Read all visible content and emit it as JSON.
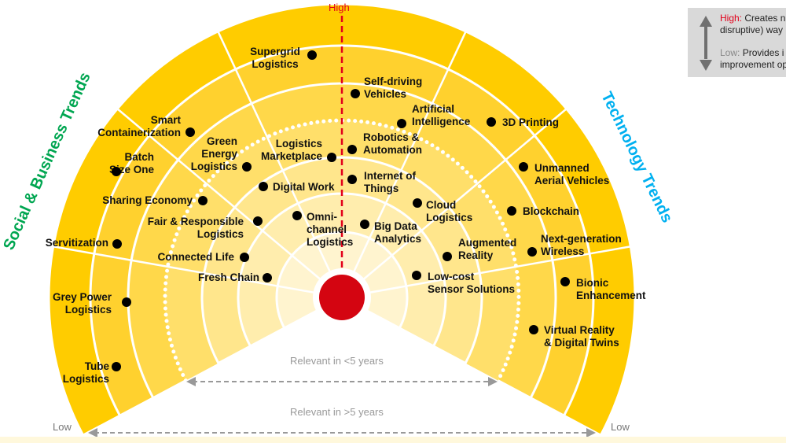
{
  "axis": {
    "high": "High",
    "low_left": "Low",
    "low_right": "Low"
  },
  "trends": {
    "social": "Social & Business Trends",
    "technology": "Technology Trends"
  },
  "timeframes": {
    "near": "Relevant in <5 years",
    "far": "Relevant in >5 years"
  },
  "legend": {
    "high_key": "High:",
    "high_text": " Creates n\ndisruptive) way",
    "low_key": "Low:",
    "low_text": " Provides i\nimprovement op"
  },
  "colors": {
    "high": "#e2001a",
    "social": "#00a651",
    "technology": "#00b0f0",
    "core": "#d40511",
    "band_outer": "#ffcc00"
  },
  "items": [
    {
      "label": "Supergrid\nLogistics"
    },
    {
      "label": "Self-driving\nVehicles"
    },
    {
      "label": "Artificial\nIntelligence"
    },
    {
      "label": "3D Printing"
    },
    {
      "label": "Smart\nContainerization"
    },
    {
      "label": "Batch\nSize One"
    },
    {
      "label": "Green\nEnergy\nLogistics"
    },
    {
      "label": "Logistics\nMarketplace"
    },
    {
      "label": "Robotics &\nAutomation"
    },
    {
      "label": "Unmanned\nAerial Vehicles"
    },
    {
      "label": "Digital Work"
    },
    {
      "label": "Internet of\nThings"
    },
    {
      "label": "Sharing Economy"
    },
    {
      "label": "Cloud\nLogistics"
    },
    {
      "label": "Blockchain"
    },
    {
      "label": "Fair & Responsible\nLogistics"
    },
    {
      "label": "Omni-\nchannel\nLogistics"
    },
    {
      "label": "Big Data\nAnalytics"
    },
    {
      "label": "Servitization"
    },
    {
      "label": "Next-generation\nWireless"
    },
    {
      "label": "Augmented\nReality"
    },
    {
      "label": "Connected Life"
    },
    {
      "label": "Fresh Chain"
    },
    {
      "label": "Low-cost\nSensor Solutions"
    },
    {
      "label": "Bionic\nEnhancement"
    },
    {
      "label": "Grey Power\nLogistics"
    },
    {
      "label": "Virtual Reality\n& Digital Twins"
    },
    {
      "label": "Tube\nLogistics"
    }
  ]
}
